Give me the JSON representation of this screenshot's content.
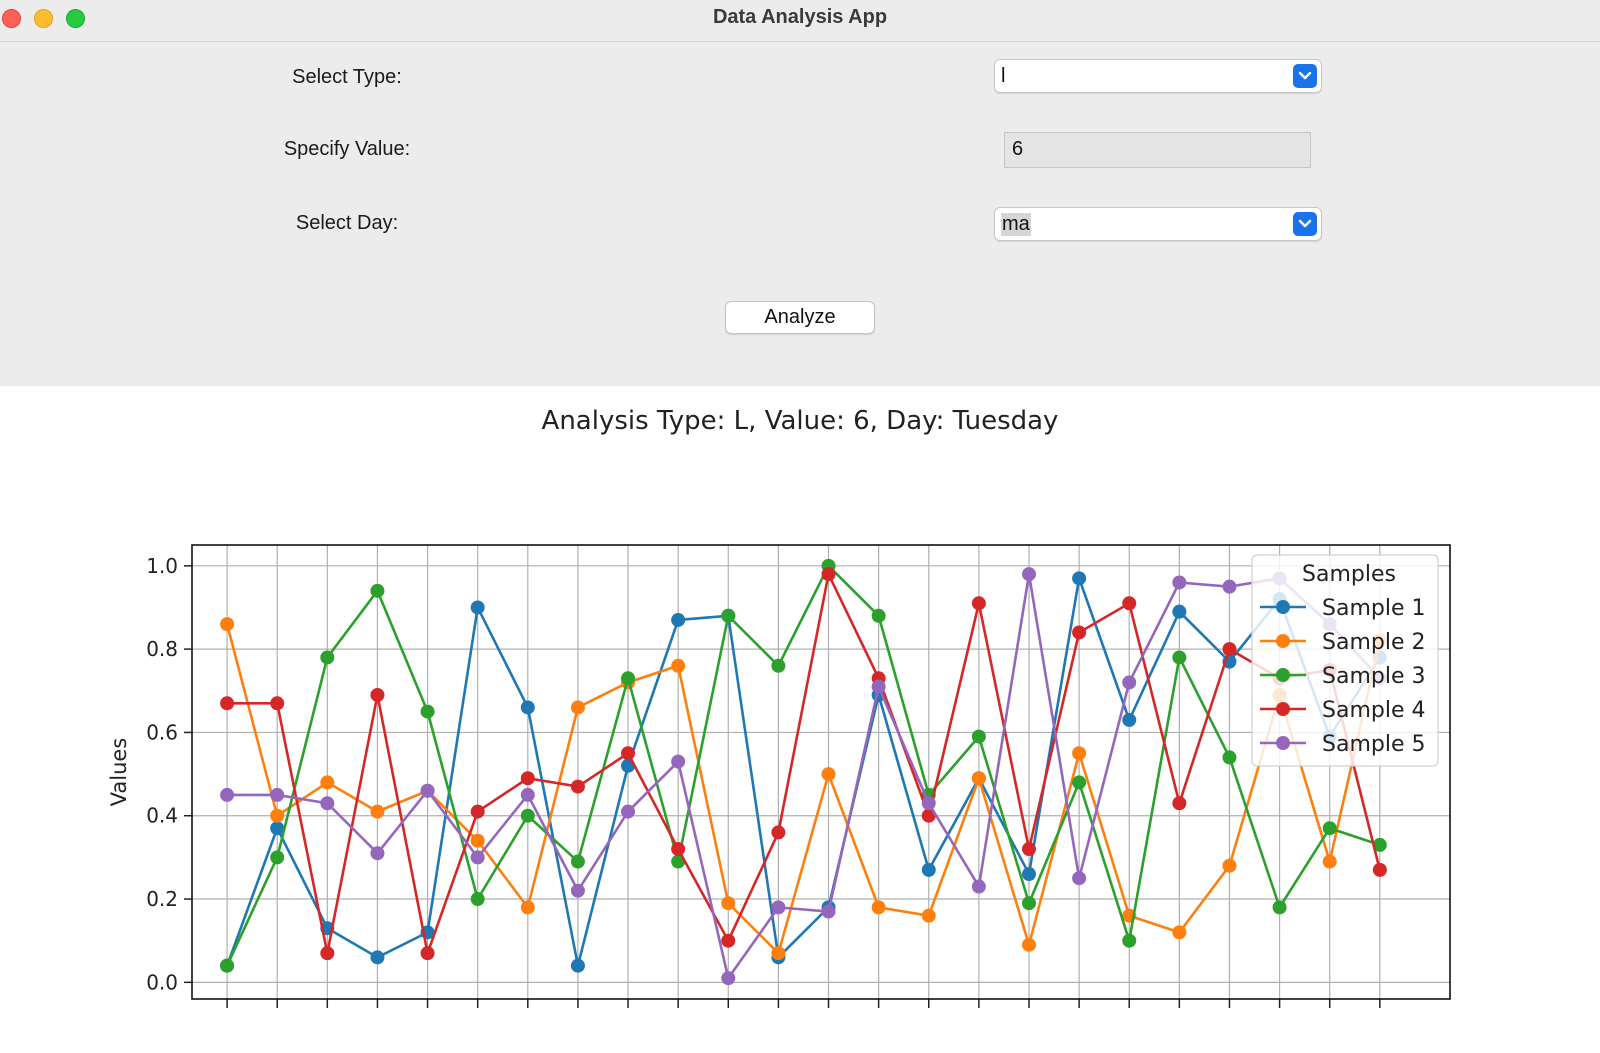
{
  "window": {
    "title": "Data Analysis App"
  },
  "form": {
    "type_label": "Select Type:",
    "type_value": "l",
    "value_label": "Specify Value:",
    "value_value": "6",
    "day_label": "Select Day:",
    "day_value": "ma",
    "analyze_label": "Analyze"
  },
  "colors": {
    "sample1": "#1f77b4",
    "sample2": "#ff7f0e",
    "sample3": "#2ca02c",
    "sample4": "#d62728",
    "sample5": "#9467bd",
    "select_accent": "#1a73e8"
  },
  "chart_data": {
    "type": "line",
    "title": "Analysis Type: L, Value: 6, Day: Tuesday",
    "xlabel": "",
    "ylabel": "Values",
    "ylim": [
      -0.04,
      1.05
    ],
    "yticks": [
      0.0,
      0.2,
      0.4,
      0.6,
      0.8,
      1.0
    ],
    "yticklabels": [
      "0.0",
      "0.2",
      "0.4",
      "0.6",
      "0.8",
      "1.0"
    ],
    "x": [
      0,
      1,
      2,
      3,
      4,
      5,
      6,
      7,
      8,
      9,
      10,
      11,
      12,
      13,
      14,
      15,
      16,
      17,
      18,
      19,
      20,
      21,
      22,
      23
    ],
    "xlim": [
      -0.7,
      24.4
    ],
    "grid": true,
    "legend": {
      "title": "Samples",
      "placement": "upper-right"
    },
    "series": [
      {
        "name": "Sample 1",
        "values": [
          0.04,
          0.37,
          0.13,
          0.06,
          0.12,
          0.9,
          0.66,
          0.04,
          0.52,
          0.87,
          0.88,
          0.06,
          0.18,
          0.69,
          0.27,
          0.49,
          0.26,
          0.97,
          0.63,
          0.89,
          0.77,
          0.92,
          0.59,
          0.78
        ]
      },
      {
        "name": "Sample 2",
        "values": [
          0.86,
          0.4,
          0.48,
          0.41,
          0.46,
          0.34,
          0.18,
          0.66,
          0.72,
          0.76,
          0.19,
          0.07,
          0.5,
          0.18,
          0.16,
          0.49,
          0.09,
          0.55,
          0.16,
          0.12,
          0.28,
          0.69,
          0.29,
          0.82
        ]
      },
      {
        "name": "Sample 3",
        "values": [
          0.04,
          0.3,
          0.78,
          0.94,
          0.65,
          0.2,
          0.4,
          0.29,
          0.73,
          0.29,
          0.88,
          0.76,
          1.0,
          0.88,
          0.45,
          0.59,
          0.19,
          0.48,
          0.1,
          0.78,
          0.54,
          0.18,
          0.37,
          0.33
        ]
      },
      {
        "name": "Sample 4",
        "values": [
          0.67,
          0.67,
          0.07,
          0.69,
          0.07,
          0.41,
          0.49,
          0.47,
          0.55,
          0.32,
          0.1,
          0.36,
          0.98,
          0.73,
          0.4,
          0.91,
          0.32,
          0.84,
          0.91,
          0.43,
          0.8,
          0.73,
          0.75,
          0.27
        ]
      },
      {
        "name": "Sample 5",
        "values": [
          0.45,
          0.45,
          0.43,
          0.31,
          0.46,
          0.3,
          0.45,
          0.22,
          0.41,
          0.53,
          0.01,
          0.18,
          0.17,
          0.71,
          0.43,
          0.23,
          0.98,
          0.25,
          0.72,
          0.96,
          0.95,
          0.97,
          0.86,
          0.73
        ]
      }
    ]
  }
}
